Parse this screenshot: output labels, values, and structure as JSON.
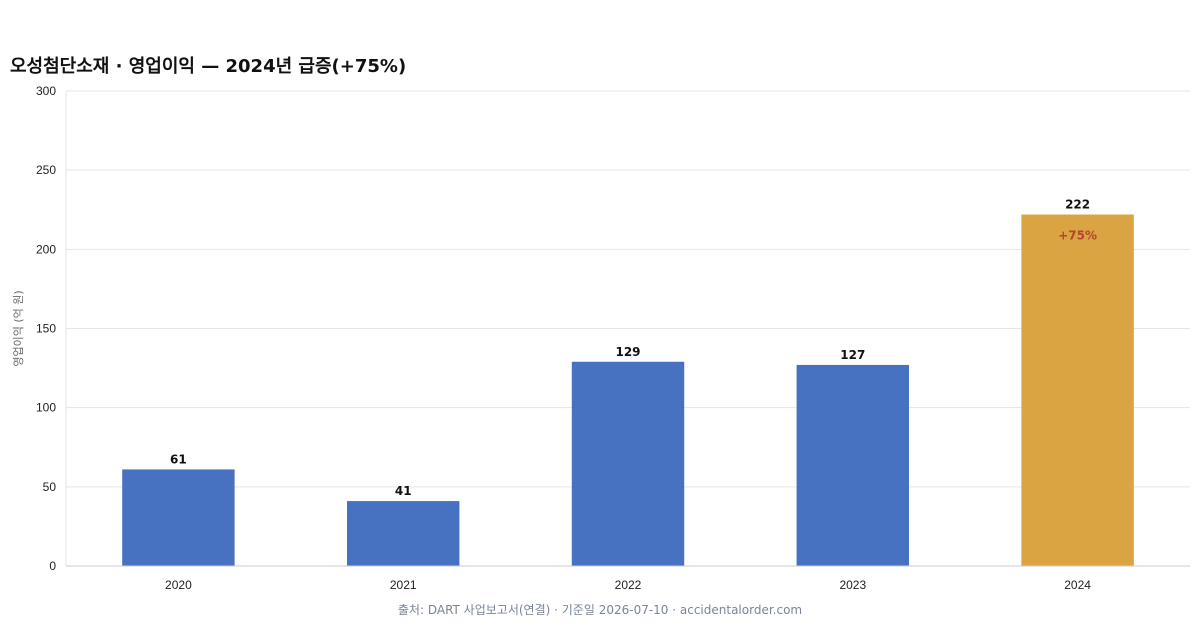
{
  "colors": {
    "bar_default": "#4672c1",
    "bar_highlight": "#d9a441",
    "annotation": "#b5452f",
    "grid": "#e5e5e5",
    "axis": "#cccccc"
  },
  "footer": {
    "source": "출처: DART 사업보고서(연결) · 기준일 2026-07-10 · accidentalorder.com"
  },
  "chart_data": {
    "type": "bar",
    "title": "오성첨단소재 · 영업이익 — 2024년 급증(+75%)",
    "xlabel": "",
    "ylabel": "영업이익 (억 원)",
    "categories": [
      "2020",
      "2021",
      "2022",
      "2023",
      "2024"
    ],
    "values": [
      61,
      41,
      129,
      127,
      222
    ],
    "data_labels": [
      "61",
      "41",
      "129",
      "127",
      "222"
    ],
    "ylim": [
      0,
      300
    ],
    "yticks": [
      0,
      50,
      100,
      150,
      200,
      250,
      300
    ],
    "grid": true,
    "highlight_index": 4,
    "annotations": [
      {
        "category": "2024",
        "text": "+75%"
      }
    ]
  }
}
